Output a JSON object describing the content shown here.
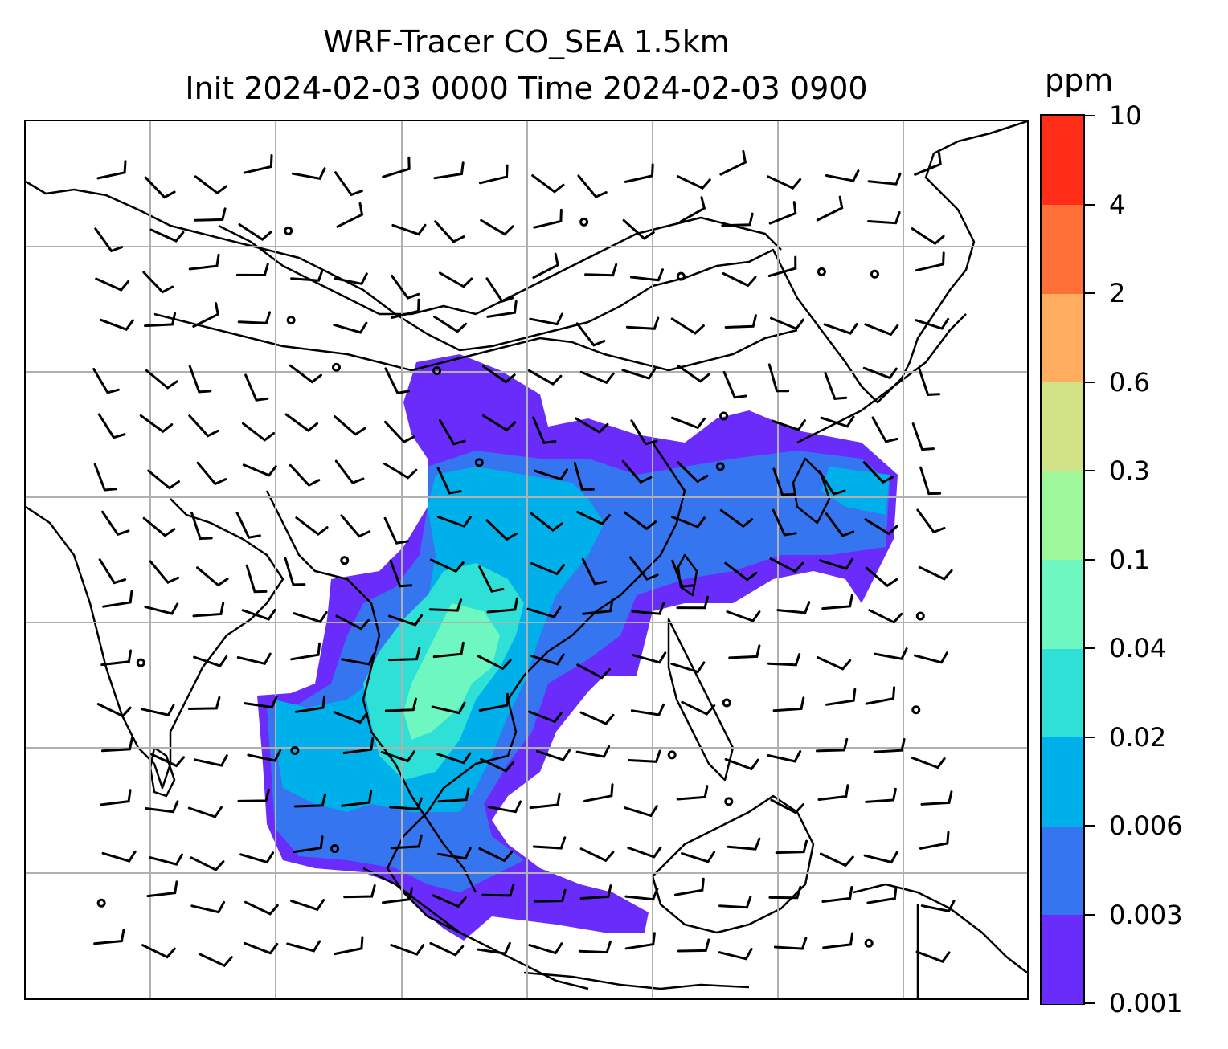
{
  "title": {
    "line1": "WRF-Tracer CO_SEA 1.5km",
    "line2": "Init 2024-02-03 0000 Time 2024-02-03 0900"
  },
  "colorbar": {
    "unit": "ppm",
    "levels": [
      "0.001",
      "0.003",
      "0.006",
      "0.02",
      "0.04",
      "0.1",
      "0.3",
      "0.6",
      "2",
      "4",
      "10"
    ],
    "colors": [
      "#6a2cfb",
      "#3575f0",
      "#00b0ea",
      "#2ee0d6",
      "#6ef7c0",
      "#9ff79c",
      "#d2e287",
      "#ffae60",
      "#ff7038",
      "#ff2e18"
    ]
  },
  "map": {
    "grid": "on",
    "plume_colors": {
      "outer": "#6a2cfb",
      "level2": "#3575f0",
      "level3": "#00b0ea",
      "level4": "#2ee0d6",
      "core": "#6ef7c0"
    }
  }
}
